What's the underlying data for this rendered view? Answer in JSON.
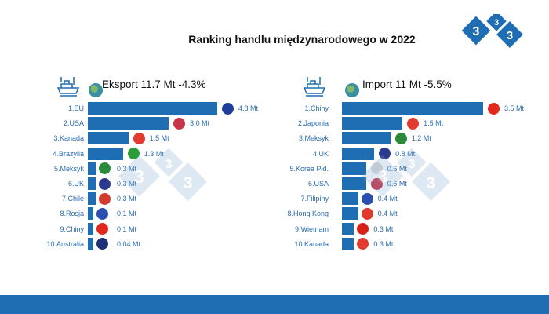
{
  "title": "Ranking handlu międzynarodowego w 2022",
  "chart_data": [
    {
      "type": "bar",
      "orientation": "horizontal",
      "title": "Eksport 11.7 Mt -4.3%",
      "categories": [
        "1.EU",
        "2.USA",
        "3.Kanada",
        "4.Brazylia",
        "5.Meksyk",
        "6.UK",
        "7.Chile",
        "8.Rosja",
        "9.Chiny",
        "10.Australia"
      ],
      "values": [
        4.8,
        3.0,
        1.5,
        1.3,
        0.3,
        0.3,
        0.3,
        0.1,
        0.1,
        0.04
      ],
      "value_labels": [
        "4.8 Mt",
        "3.0 Mt",
        "1.5 Mt",
        "1.3 Mt",
        "0.3 Mt",
        "0.3 Mt",
        "0.3 Mt",
        "0.1 Mt",
        "0.1 Mt",
        "0.04 Mt"
      ],
      "flags": [
        "#1e3d99",
        "#c8344a",
        "#e23a2e",
        "#2a9d3a",
        "#2a8a3a",
        "#2b3a8f",
        "#d33a2e",
        "#2b4fb0",
        "#e0281c",
        "#1d2f75"
      ],
      "bar_color": "#1f6db2"
    },
    {
      "type": "bar",
      "orientation": "horizontal",
      "title": "Import 11 Mt -5.5%",
      "categories": [
        "1.Chiny",
        "2.Japonia",
        "3.Meksyk",
        "4.UK",
        "5.Korea Płd.",
        "6.USA",
        "7.Filipiny",
        "8.Hong Kong",
        "9.Wietnam",
        "10.Kanada"
      ],
      "values": [
        3.5,
        1.5,
        1.2,
        0.8,
        0.6,
        0.6,
        0.4,
        0.4,
        0.3,
        0.3
      ],
      "value_labels": [
        "3.5 Mt",
        "1.5 Mt",
        "1.2 Mt",
        "0.8 Mt",
        "0.6 Mt",
        "0.6 Mt",
        "0.4 Mt",
        "0.4 Mt",
        "0.3 Mt",
        "0.3 Mt"
      ],
      "flags": [
        "#e0281c",
        "#e23a2e",
        "#2a8a3a",
        "#2b3a8f",
        "#d9d9d9",
        "#c8344a",
        "#2b4fb0",
        "#de3a2e",
        "#d8201a",
        "#e23a2e"
      ],
      "bar_color": "#1f6db2"
    }
  ],
  "logo_text": "333"
}
